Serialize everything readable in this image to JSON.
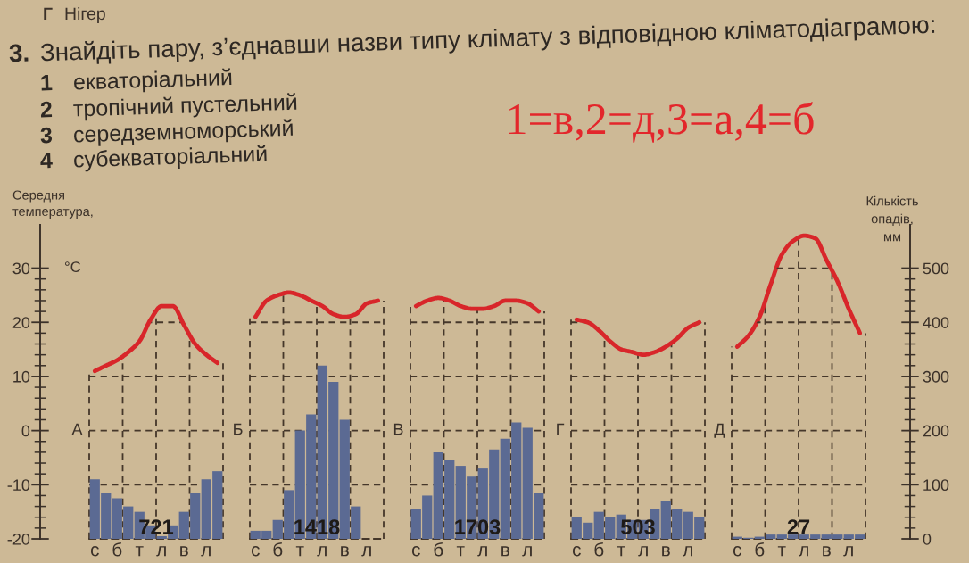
{
  "chart_data": [
    {
      "type": "bar",
      "title": "А",
      "ylabel": "Середня\nтемпература,\n°C",
      "categories": [
        "с",
        null,
        "б",
        null,
        "т",
        null,
        "л",
        null,
        "в",
        null,
        "л",
        null
      ],
      "series": [
        {
          "type": "line",
          "color": "#d8262a",
          "values": [
            11,
            12,
            13,
            14.5,
            16.5,
            20.5,
            23,
            23,
            19.5,
            16,
            14,
            12.5
          ]
        },
        {
          "axis": "y2",
          "color": "#5b6a93",
          "values": [
            110,
            85,
            75,
            60,
            50,
            25,
            5,
            25,
            50,
            85,
            110,
            125
          ]
        }
      ],
      "ylim": [
        -20,
        38
      ],
      "yticks": [
        -20,
        -10,
        0,
        10,
        20,
        30
      ],
      "y2lim": [
        0,
        580
      ],
      "grid": true,
      "annotations": [
        "721",
        "Г Нігер",
        "3. Знайдіть пару, з’єднавши назви типу клімату з відповідною кліматодіаграмою:",
        "1 екваторіальний",
        "2 тропічний пустельний",
        "3 середземноморський",
        "4 субекваторіальний",
        "1=в,2=д,3=а,4=б"
      ]
    },
    {
      "type": "bar",
      "title": "Б",
      "categories": [
        "с",
        null,
        "б",
        null,
        "т",
        null,
        "л",
        null,
        "в",
        null,
        "л",
        null
      ],
      "series": [
        {
          "type": "line",
          "color": "#d8262a",
          "values": [
            21,
            24,
            25,
            25.5,
            25,
            24,
            23,
            21.5,
            21,
            21.5,
            23.5,
            24
          ]
        },
        {
          "axis": "y2",
          "color": "#5b6a93",
          "values": [
            15,
            15,
            35,
            90,
            200,
            230,
            320,
            290,
            220,
            60,
            0,
            0
          ]
        }
      ],
      "ylim": [
        -20,
        38
      ],
      "yticks": [
        -20,
        -10,
        0,
        10,
        20,
        30
      ],
      "y2lim": [
        0,
        580
      ],
      "tick_labels": "x",
      "grid": true,
      "annotations": [
        "1418"
      ]
    },
    {
      "type": "bar",
      "title": "В",
      "categories": [
        "с",
        null,
        "б",
        null,
        "т",
        null,
        "л",
        null,
        "в",
        null,
        "л",
        null
      ],
      "series": [
        {
          "type": "line",
          "color": "#d8262a",
          "values": [
            23,
            24,
            24.5,
            24,
            23,
            22.5,
            22.5,
            23,
            24,
            24,
            23.5,
            22
          ]
        },
        {
          "axis": "y2",
          "color": "#5b6a93",
          "values": [
            55,
            80,
            160,
            145,
            135,
            115,
            130,
            165,
            185,
            215,
            205,
            85
          ]
        }
      ],
      "ylim": [
        -20,
        38
      ],
      "yticks": [
        -20,
        -10,
        0,
        10,
        20,
        30
      ],
      "y2lim": [
        0,
        580
      ],
      "tick_labels": "x",
      "grid": true,
      "annotations": [
        "1703"
      ]
    },
    {
      "type": "bar",
      "title": "Г",
      "categories": [
        "с",
        null,
        "б",
        null,
        "т",
        null,
        "л",
        null,
        "в",
        null,
        "л",
        null
      ],
      "series": [
        {
          "type": "line",
          "color": "#d8262a",
          "values": [
            20.5,
            20,
            18.5,
            16.5,
            15,
            14.5,
            14,
            14.5,
            15.5,
            17,
            19,
            20
          ]
        },
        {
          "axis": "y2",
          "color": "#5b6a93",
          "values": [
            40,
            30,
            50,
            40,
            45,
            35,
            35,
            55,
            70,
            55,
            50,
            40
          ]
        }
      ],
      "ylim": [
        -20,
        38
      ],
      "yticks": [
        -20,
        -10,
        0,
        10,
        20,
        30
      ],
      "y2lim": [
        0,
        580
      ],
      "tick_labels": "x",
      "grid": true,
      "annotations": [
        "503"
      ]
    },
    {
      "type": "bar",
      "title": "Д",
      "y2label": "Кількість\nопадів,\nмм",
      "categories": [
        "с",
        null,
        "б",
        null,
        "т",
        null,
        "л",
        null,
        "в",
        null,
        "л",
        null
      ],
      "series": [
        {
          "type": "line",
          "color": "#d8262a",
          "values": [
            15.5,
            17.5,
            21,
            27,
            32.5,
            35,
            36,
            35.5,
            31.5,
            27.5,
            22.5,
            18
          ]
        },
        {
          "axis": "y2",
          "color": "#5b6a93",
          "values": [
            4,
            2,
            4,
            8,
            8,
            8,
            8,
            8,
            8,
            8,
            8,
            8
          ]
        }
      ],
      "ylim": [
        -20,
        38
      ],
      "y2lim": [
        0,
        580
      ],
      "y2ticks": [
        0,
        100,
        200,
        300,
        400,
        500
      ],
      "grid": true,
      "annotations": [
        "27"
      ]
    }
  ]
}
